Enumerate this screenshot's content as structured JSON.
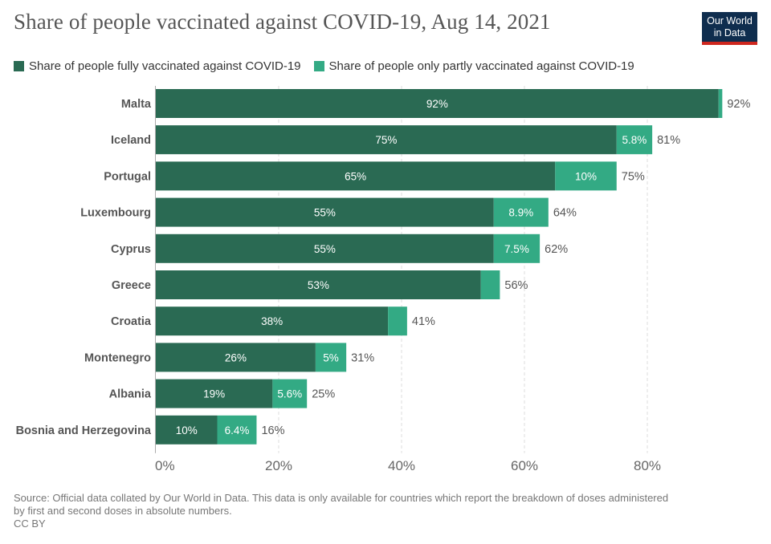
{
  "header": {
    "title": "Share of people vaccinated against COVID-19, Aug 14, 2021",
    "logo_line1": "Our World",
    "logo_line2": "in Data"
  },
  "legend": [
    {
      "label": "Share of people fully vaccinated against COVID-19",
      "color": "#00533c"
    },
    {
      "label": "Share of people only partly vaccinated against COVID-19",
      "color": "#1a9e74"
    }
  ],
  "footer": {
    "source_line1": "Source: Official data collated by Our World in Data. This data is only available for countries which report the breakdown of doses administered",
    "source_line2": "by first and second doses in absolute numbers.",
    "license": "CC BY"
  },
  "chart_data": {
    "type": "bar",
    "orientation": "horizontal",
    "stacked": true,
    "title": "Share of people vaccinated against COVID-19, Aug 14, 2021",
    "xlabel": "",
    "ylabel": "",
    "xlim": [
      0,
      92
    ],
    "x_ticks": [
      0,
      20,
      40,
      60,
      80
    ],
    "x_tick_labels": [
      "0%",
      "20%",
      "40%",
      "60%",
      "80%"
    ],
    "grid": "vertical dashed",
    "legend_position": "top-left",
    "colors": {
      "full": "#2a6a53",
      "partial": "#33aa84",
      "full_text": "#ffffff",
      "total_text": "#555555",
      "label_text": "#555555"
    },
    "categories": [
      "Malta",
      "Iceland",
      "Portugal",
      "Luxembourg",
      "Cyprus",
      "Greece",
      "Croatia",
      "Montenegro",
      "Albania",
      "Bosnia and Herzegovina"
    ],
    "series": [
      {
        "name": "Share of people fully vaccinated against COVID-19",
        "values": [
          91.6,
          75,
          65,
          55,
          55,
          52.9,
          37.8,
          26,
          19,
          10
        ],
        "labels": [
          "92%",
          "75%",
          "65%",
          "55%",
          "55%",
          "53%",
          "38%",
          "26%",
          "19%",
          "10%"
        ]
      },
      {
        "name": "Share of people only partly vaccinated against COVID-19",
        "values": [
          0.6,
          5.8,
          10,
          8.9,
          7.5,
          3.1,
          3.1,
          5,
          5.6,
          6.4
        ],
        "labels": [
          "",
          "5.8%",
          "10%",
          "8.9%",
          "7.5%",
          "",
          "",
          "5%",
          "5.6%",
          "6.4%"
        ]
      }
    ],
    "total_labels": [
      "92%",
      "81%",
      "75%",
      "64%",
      "62%",
      "56%",
      "41%",
      "31%",
      "25%",
      "16%"
    ]
  }
}
